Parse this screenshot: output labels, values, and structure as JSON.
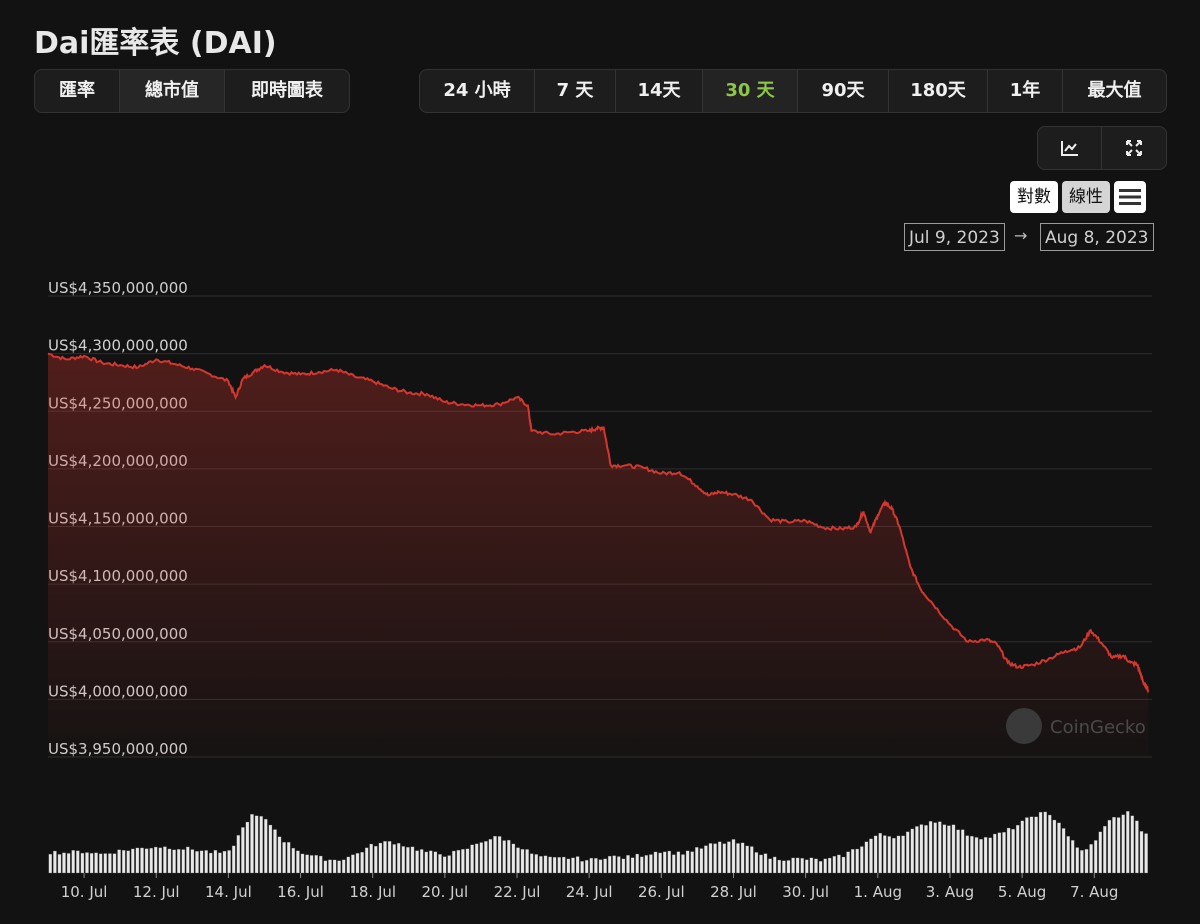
{
  "title": "Dai匯率表 (DAI)",
  "view_tabs": [
    {
      "label": "匯率",
      "active": false
    },
    {
      "label": "總市值",
      "active": true
    },
    {
      "label": "即時圖表",
      "active": false
    }
  ],
  "range_tabs": [
    {
      "label": "24 小時",
      "active": false
    },
    {
      "label": "7 天",
      "active": false
    },
    {
      "label": "14天",
      "active": false
    },
    {
      "label": "30 天",
      "active": true
    },
    {
      "label": "90天",
      "active": false
    },
    {
      "label": "180天",
      "active": false
    },
    {
      "label": "1年",
      "active": false
    },
    {
      "label": "最大值",
      "active": false
    }
  ],
  "tools": {
    "line_icon": "line-chart-icon",
    "expand_icon": "expand-icon"
  },
  "scale": {
    "log_label": "對數",
    "linear_label": "線性",
    "menu_icon": "hamburger-menu-icon",
    "selected": "linear"
  },
  "date_range": {
    "from": "Jul 9, 2023",
    "to": "Aug 8, 2023",
    "arrow": "→"
  },
  "watermark": "CoinGecko",
  "colors": {
    "line": "#d5372f",
    "active_tab": "#8dc648",
    "volume": "#e8e8e8",
    "background": "#121212"
  },
  "chart_data": {
    "type": "area",
    "ylabel": "",
    "xlabel": "",
    "ylim": [
      3950000000,
      4350000000
    ],
    "yticks": [
      4350000000,
      4300000000,
      4250000000,
      4200000000,
      4150000000,
      4100000000,
      4050000000,
      4000000000,
      3950000000
    ],
    "ytick_labels": [
      "US$4,350,000,000",
      "US$4,300,000,000",
      "US$4,250,000,000",
      "US$4,200,000,000",
      "US$4,150,000,000",
      "US$4,100,000,000",
      "US$4,050,000,000",
      "US$4,000,000,000",
      "US$3,950,000,000"
    ],
    "xlim": [
      9.0,
      39.6
    ],
    "xticks": [
      10,
      12,
      14,
      16,
      18,
      20,
      22,
      24,
      26,
      28,
      30,
      32,
      34,
      36,
      38
    ],
    "xtick_labels": [
      "10. Jul",
      "12. Jul",
      "14. Jul",
      "16. Jul",
      "18. Jul",
      "20. Jul",
      "22. Jul",
      "24. Jul",
      "26. Jul",
      "28. Jul",
      "30. Jul",
      "1. Aug",
      "3. Aug",
      "5. Aug",
      "7. Aug"
    ],
    "grid": true,
    "series": [
      {
        "values_unit": "USD market cap",
        "x": [
          9.0,
          9.5,
          10.0,
          10.5,
          11.0,
          11.5,
          12.0,
          12.5,
          13.0,
          13.5,
          14.0,
          14.2,
          14.4,
          14.7,
          15.0,
          15.5,
          16.0,
          16.5,
          17.0,
          17.5,
          18.0,
          18.5,
          19.0,
          19.5,
          20.0,
          20.5,
          21.0,
          21.5,
          22.0,
          22.3,
          22.4,
          23.0,
          23.5,
          24.0,
          24.2,
          24.4,
          24.6,
          25.0,
          25.5,
          26.0,
          26.5,
          27.0,
          27.3,
          27.6,
          28.0,
          28.5,
          29.0,
          29.5,
          30.0,
          30.5,
          31.0,
          31.4,
          31.6,
          31.8,
          32.0,
          32.2,
          32.4,
          32.6,
          32.9,
          33.2,
          33.5,
          34.0,
          34.5,
          35.0,
          35.3,
          35.6,
          35.9,
          36.3,
          36.8,
          37.2,
          37.6,
          37.9,
          38.2,
          38.5,
          38.8,
          39.0,
          39.2,
          39.3,
          39.4,
          39.5
        ],
        "values": [
          4300000000,
          4295000000,
          4298000000,
          4292000000,
          4290000000,
          4288000000,
          4295000000,
          4291000000,
          4287000000,
          4282000000,
          4276000000,
          4262000000,
          4278000000,
          4284000000,
          4290000000,
          4284000000,
          4282000000,
          4284000000,
          4286000000,
          4280000000,
          4276000000,
          4270000000,
          4266000000,
          4265000000,
          4258000000,
          4256000000,
          4255000000,
          4256000000,
          4262000000,
          4255000000,
          4233000000,
          4230000000,
          4232000000,
          4233000000,
          4235000000,
          4236000000,
          4203000000,
          4203000000,
          4201000000,
          4196000000,
          4197000000,
          4185000000,
          4177000000,
          4180000000,
          4178000000,
          4173000000,
          4156000000,
          4154000000,
          4155000000,
          4149000000,
          4148000000,
          4150000000,
          4163000000,
          4145000000,
          4160000000,
          4171000000,
          4165000000,
          4150000000,
          4115000000,
          4095000000,
          4084000000,
          4065000000,
          4050000000,
          4052000000,
          4048000000,
          4032000000,
          4028000000,
          4030000000,
          4036000000,
          4042000000,
          4045000000,
          4060000000,
          4049000000,
          4036000000,
          4038000000,
          4032000000,
          4030000000,
          4020000000,
          4012000000,
          4008000000
        ]
      }
    ],
    "volume": {
      "x": [
        9.0,
        9.5,
        10.0,
        10.5,
        11.0,
        11.5,
        12.0,
        12.5,
        13.0,
        13.5,
        14.0,
        14.3,
        14.6,
        14.9,
        15.2,
        15.5,
        16.0,
        16.5,
        17.0,
        17.5,
        18.0,
        18.5,
        19.0,
        19.5,
        20.0,
        20.5,
        21.0,
        21.5,
        22.0,
        22.5,
        23.0,
        23.5,
        24.0,
        24.5,
        25.0,
        25.5,
        26.0,
        26.5,
        27.0,
        27.5,
        28.0,
        28.5,
        29.0,
        29.5,
        30.0,
        30.5,
        31.0,
        31.5,
        32.0,
        32.5,
        33.0,
        33.5,
        34.0,
        34.5,
        35.0,
        35.5,
        36.0,
        36.3,
        36.6,
        37.0,
        37.3,
        37.6,
        38.0,
        38.3,
        38.6,
        39.0,
        39.3,
        39.5
      ],
      "values": [
        0.3,
        0.29,
        0.31,
        0.27,
        0.32,
        0.35,
        0.38,
        0.36,
        0.34,
        0.3,
        0.28,
        0.55,
        0.82,
        0.8,
        0.68,
        0.48,
        0.3,
        0.22,
        0.18,
        0.26,
        0.4,
        0.45,
        0.38,
        0.3,
        0.26,
        0.32,
        0.45,
        0.52,
        0.4,
        0.25,
        0.2,
        0.22,
        0.18,
        0.24,
        0.22,
        0.26,
        0.32,
        0.28,
        0.34,
        0.42,
        0.45,
        0.36,
        0.22,
        0.2,
        0.2,
        0.18,
        0.24,
        0.38,
        0.55,
        0.52,
        0.62,
        0.75,
        0.7,
        0.55,
        0.5,
        0.58,
        0.72,
        0.82,
        0.86,
        0.75,
        0.52,
        0.3,
        0.42,
        0.7,
        0.8,
        0.88,
        0.62,
        0.5
      ]
    }
  }
}
